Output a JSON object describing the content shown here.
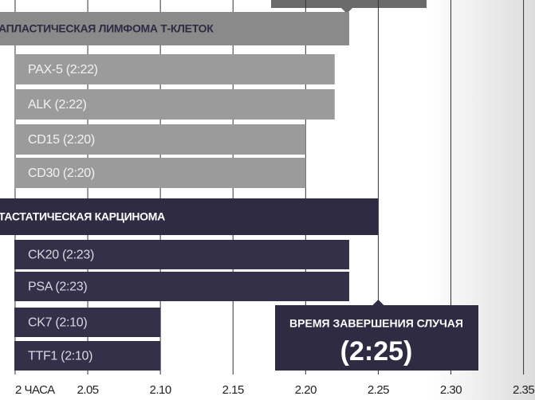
{
  "chart_data": {
    "type": "bar",
    "orientation": "horizontal",
    "categories": [
      "АПЛАСТИЧЕСКАЯ ЛИМФОМА Т-КЛЕТОК",
      "PAX-5 (2:22)",
      "ALK (2:22)",
      "CD15 (2:20)",
      "CD30 (2:20)",
      "ТАСТАТИЧЕСКАЯ КАРЦИНОМА",
      "CK20 (2:23)",
      "PSA (2:23)",
      "CK7 (2:10)",
      "TTF1 (2:10)"
    ],
    "values": [
      2.23,
      2.22,
      2.22,
      2.2,
      2.2,
      2.25,
      2.23,
      2.23,
      2.1,
      2.1
    ],
    "colors": [
      "#8a8a8a",
      "#9b9b9b",
      "#9b9b9b",
      "#9b9b9b",
      "#9b9b9b",
      "#2f2b42",
      "#35304a",
      "#35304a",
      "#35304a",
      "#35304a"
    ],
    "xlim": [
      1.9896,
      2.3579
    ],
    "xticks": [
      {
        "value": 2.0,
        "label": "2 ЧАСА"
      },
      2.05,
      {
        "value": 2.1,
        "label": "2.10"
      },
      2.15,
      {
        "value": 2.2,
        "label": "2.20"
      },
      2.25,
      {
        "value": 2.3,
        "label": "2.30"
      },
      2.35
    ],
    "grid": true,
    "annotation": {
      "text": "ВРЕМЯ ЗАВЕРШЕНИЯ СЛУЧАЯ",
      "value_label": "(2:25)",
      "x": 2.25
    }
  }
}
